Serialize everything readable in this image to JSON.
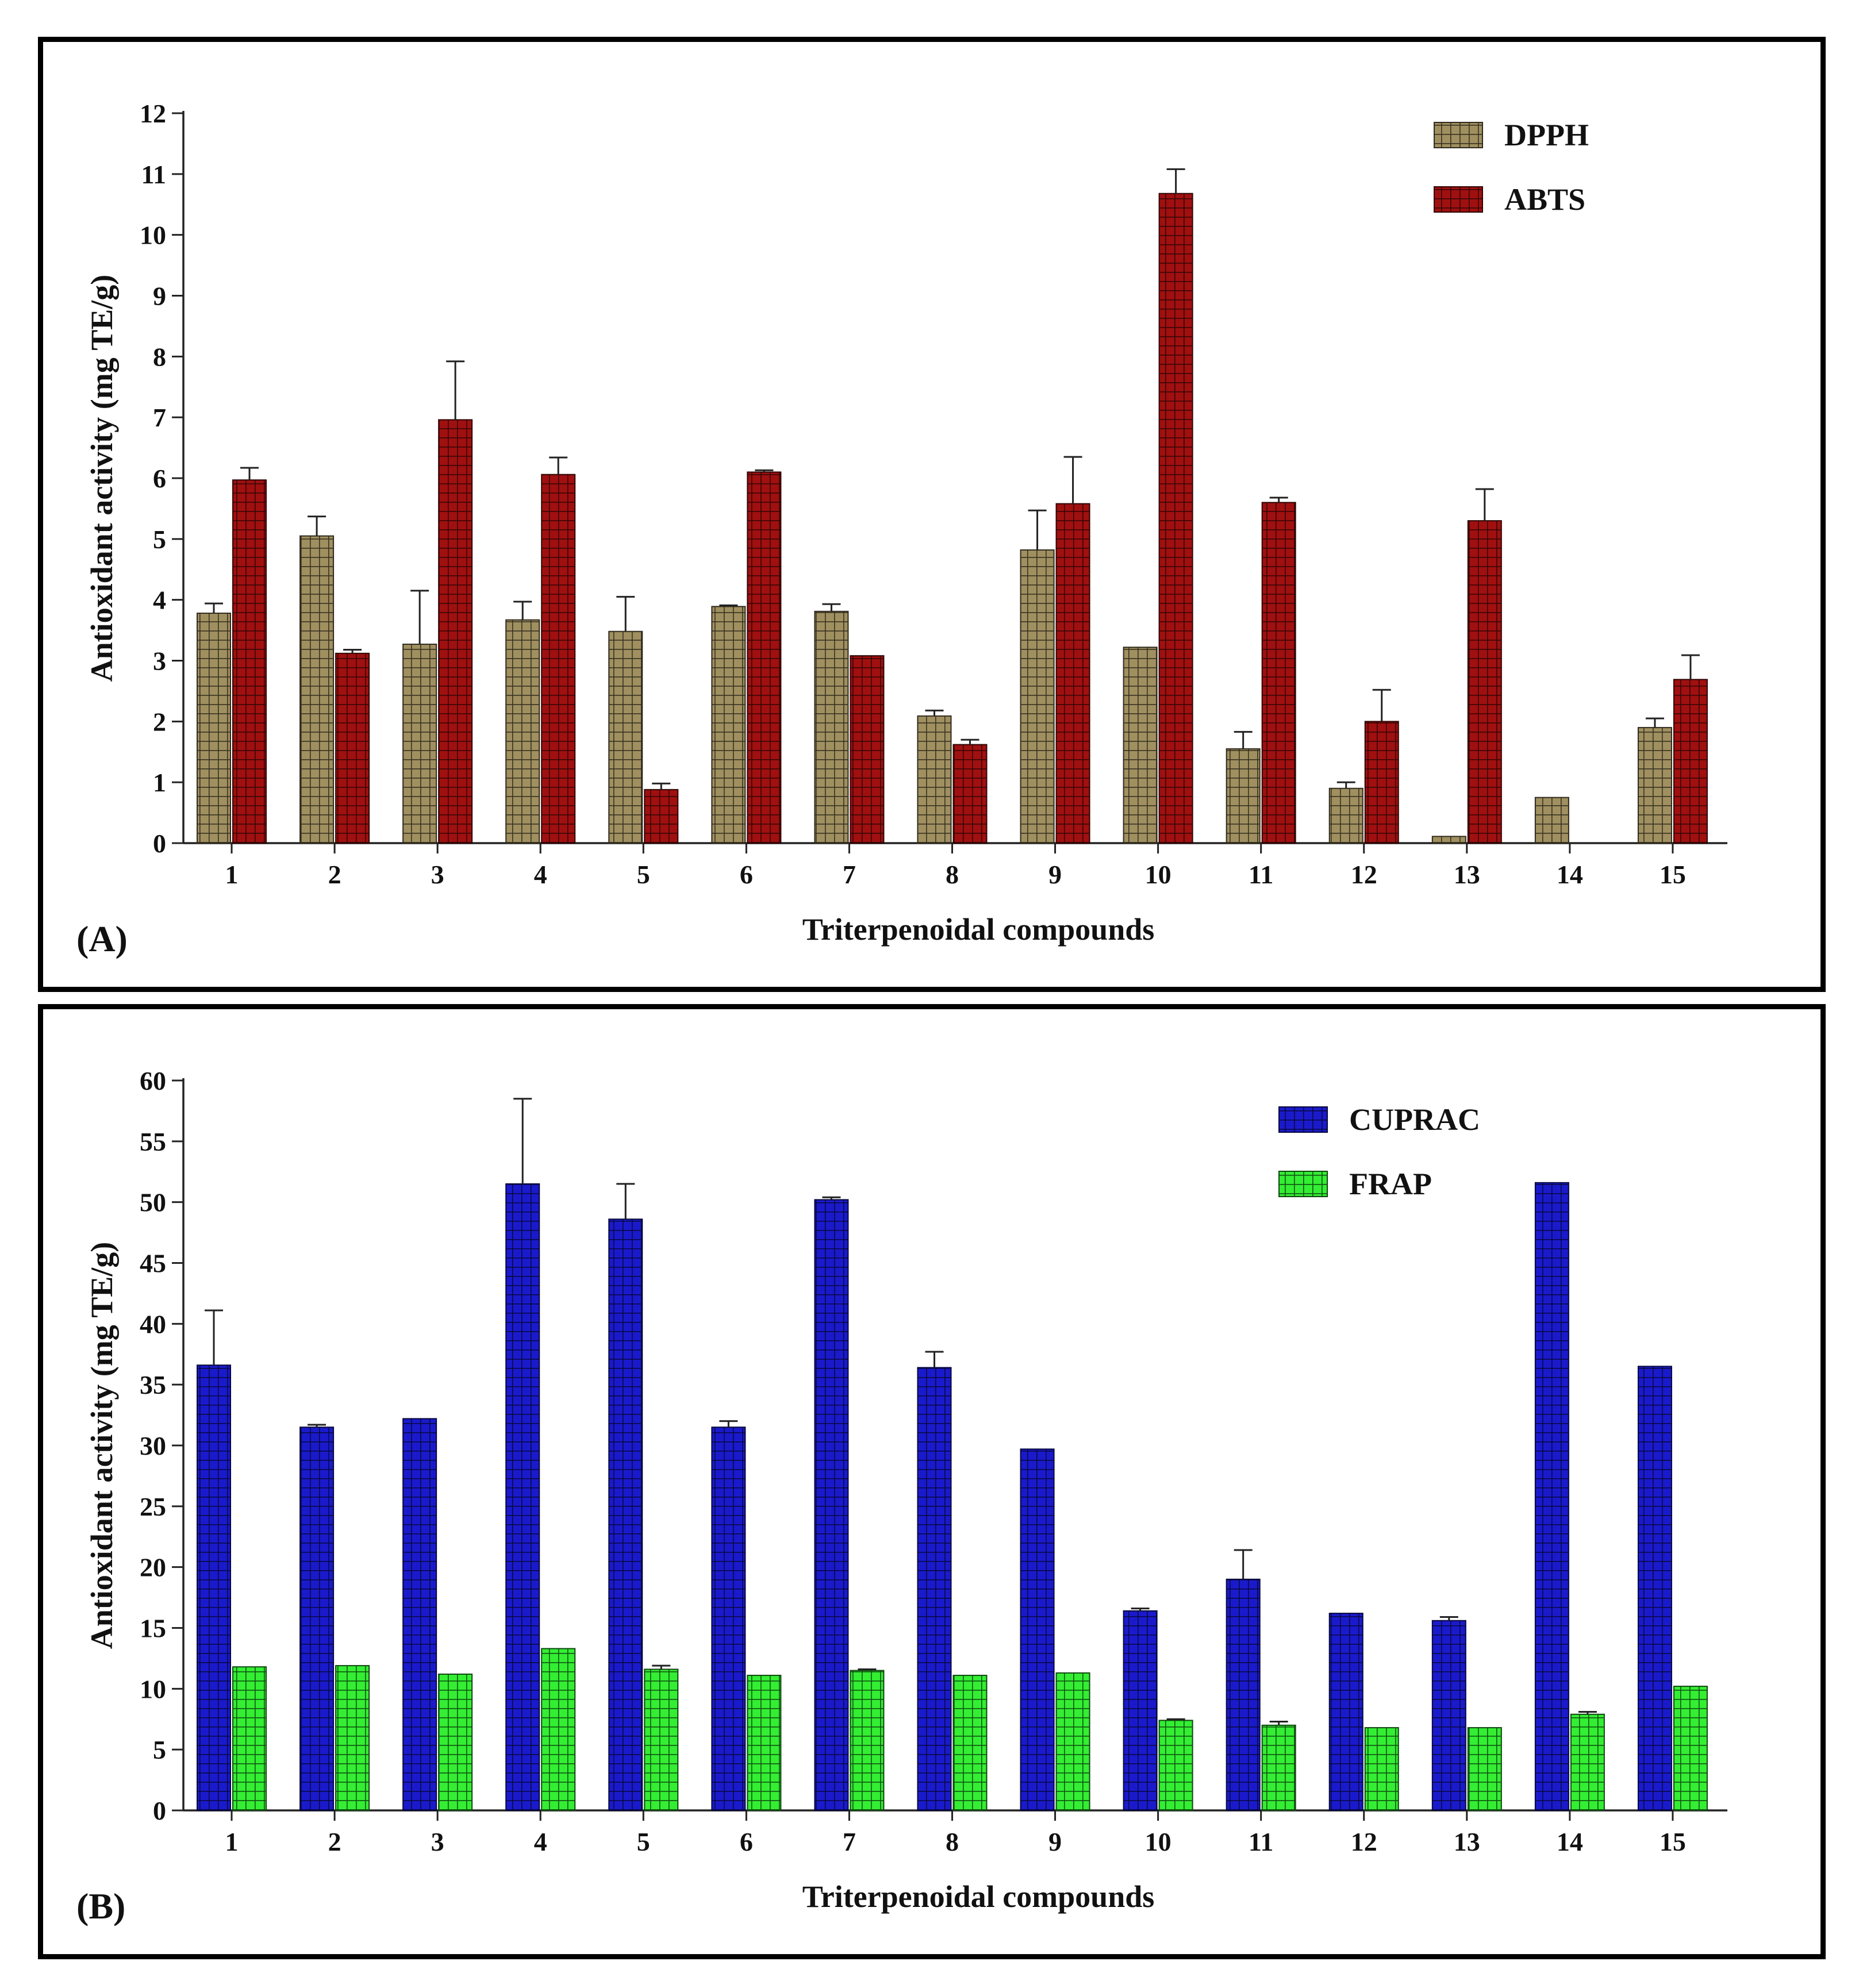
{
  "chart_data": [
    {
      "type": "bar",
      "panel_label": "(A)",
      "title": "",
      "xlabel": "Triterpenoidal compounds",
      "ylabel": "Antioxidant activity (mg TE/g)",
      "ylim": [
        0,
        12
      ],
      "ytick_step": 1,
      "legend_position": "top-right",
      "categories": [
        "1",
        "2",
        "3",
        "4",
        "5",
        "6",
        "7",
        "8",
        "9",
        "10",
        "11",
        "12",
        "13",
        "14",
        "15"
      ],
      "series": [
        {
          "name": "DPPH",
          "color": "#a09060",
          "pattern": "grid",
          "values": [
            3.78,
            5.05,
            3.27,
            3.67,
            3.48,
            3.89,
            3.81,
            2.09,
            4.82,
            3.22,
            1.55,
            0.9,
            0.11,
            0.75,
            1.9
          ],
          "errors": [
            0.16,
            0.32,
            0.88,
            0.3,
            0.57,
            0.02,
            0.12,
            0.09,
            0.65,
            0.0,
            0.28,
            0.1,
            0.0,
            0.0,
            0.15
          ]
        },
        {
          "name": "ABTS",
          "color": "#a01010",
          "pattern": "grid",
          "values": [
            5.97,
            3.12,
            6.96,
            6.06,
            0.88,
            6.1,
            3.08,
            1.62,
            5.58,
            10.68,
            5.6,
            2.0,
            5.3,
            0,
            2.69
          ],
          "errors": [
            0.2,
            0.06,
            0.96,
            0.28,
            0.1,
            0.03,
            0.0,
            0.08,
            0.77,
            0.4,
            0.08,
            0.52,
            0.52,
            0,
            0.4
          ]
        }
      ]
    },
    {
      "type": "bar",
      "panel_label": "(B)",
      "title": "",
      "xlabel": "Triterpenoidal compounds",
      "ylabel": "Antioxidant activity (mg TE/g)",
      "ylim": [
        0,
        60
      ],
      "ytick_step": 5,
      "legend_position": "top-right",
      "categories": [
        "1",
        "2",
        "3",
        "4",
        "5",
        "6",
        "7",
        "8",
        "9",
        "10",
        "11",
        "12",
        "13",
        "14",
        "15"
      ],
      "series": [
        {
          "name": "CUPRAC",
          "color": "#1a1acc",
          "pattern": "grid",
          "values": [
            36.6,
            31.5,
            32.2,
            51.5,
            48.6,
            31.5,
            50.2,
            36.4,
            29.7,
            16.4,
            19.0,
            16.2,
            15.6,
            51.6,
            36.5
          ],
          "errors": [
            4.5,
            0.2,
            0.0,
            7.0,
            2.9,
            0.5,
            0.2,
            1.3,
            0.0,
            0.2,
            2.4,
            0.0,
            0.3,
            0.0,
            0.0
          ]
        },
        {
          "name": "FRAP",
          "color": "#33ee33",
          "pattern": "grid",
          "values": [
            11.8,
            11.9,
            11.2,
            13.3,
            11.6,
            11.1,
            11.5,
            11.1,
            11.3,
            7.4,
            7.0,
            6.8,
            6.8,
            7.9,
            10.2
          ],
          "errors": [
            0.0,
            0.0,
            0.0,
            0.0,
            0.3,
            0.0,
            0.1,
            0.0,
            0.0,
            0.1,
            0.3,
            0.0,
            0.0,
            0.2,
            0.0
          ]
        }
      ]
    }
  ]
}
